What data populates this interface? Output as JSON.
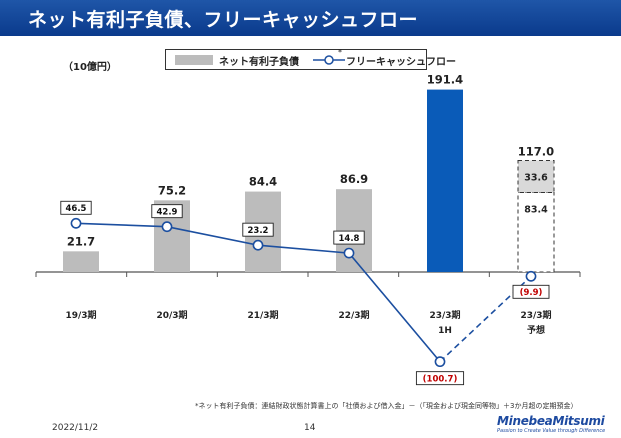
{
  "header": {
    "title": "ネット有利子負債、フリーキャッシュフロー"
  },
  "unit_label": "（10億円）",
  "legend": {
    "bar_label": "ネット有利子負債",
    "bar_mark": "*",
    "line_label": "フリーキャッシュフロー"
  },
  "footnote": "*ネット有利子負債：連結財政状態計算書上の「社債および借入金」－（「現金および現金同等物」＋3か月超の定期預金）",
  "footer": {
    "date": "2022/11/2",
    "page": "14",
    "logo_name": "MinebeaMitsumi",
    "logo_tagline": "Passion to Create Value through Difference"
  },
  "colors": {
    "title_bg": "#0a3a8c",
    "bar_gray": "#bcbcbc",
    "bar_blue": "#0a5bb8",
    "line": "#1c4fa0",
    "negative": "#c00000"
  },
  "chart_data": {
    "type": "bar+line",
    "title": "ネット有利子負債、フリーキャッシュフロー",
    "unit": "10億円",
    "categories": [
      {
        "line1": "19/3期",
        "line2": ""
      },
      {
        "line1": "20/3期",
        "line2": ""
      },
      {
        "line1": "21/3期",
        "line2": ""
      },
      {
        "line1": "22/3期",
        "line2": ""
      },
      {
        "line1": "23/3期",
        "line2": "1H"
      },
      {
        "line1": "23/3期",
        "line2": "予想"
      }
    ],
    "series": [
      {
        "name": "ネット有利子負債",
        "type": "bar",
        "values": [
          21.7,
          75.2,
          84.4,
          86.9,
          191.4,
          117.0
        ],
        "labels": [
          "21.7",
          "75.2",
          "84.4",
          "86.9",
          "191.4",
          "117.0"
        ],
        "forecast_breakdown": {
          "base": 83.4,
          "base_label": "83.4",
          "increment": 33.6,
          "increment_label": "33.6"
        }
      },
      {
        "name": "フリーキャッシュフロー",
        "type": "line",
        "values": [
          46.5,
          42.9,
          23.2,
          14.8,
          -100.7,
          -9.9
        ],
        "labels": [
          "46.5",
          "42.9",
          "23.2",
          "14.8",
          "(100.7)",
          "(9.9)"
        ]
      }
    ],
    "bar_ylim": [
      0,
      200
    ],
    "line_ylim": [
      -120,
      80
    ]
  }
}
